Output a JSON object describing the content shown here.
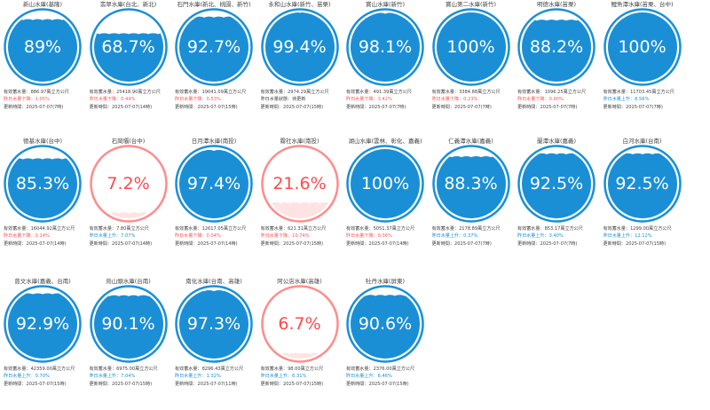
{
  "reservoirs": [
    {
      "name": "新山水庫(基隆)",
      "pct_label": "89%",
      "level": 0.89,
      "storage": "有效蓄水量：886.97萬立方公尺",
      "change": "昨日水量下降：1.05%",
      "change_dir": "down",
      "updated": "更新時間：2025-07-07(7時)"
    },
    {
      "name": "翡翠水庫(台北、新北)",
      "pct_label": "68.7%",
      "level": 0.687,
      "storage": "有效蓄水量：25418.90萬立方公尺",
      "change": "昨日水量下降：0.44%",
      "change_dir": "down",
      "updated": "更新時間：2025-07-07(14時)"
    },
    {
      "name": "石門水庫(新北、桃園、新竹)",
      "pct_label": "92.7%",
      "level": 0.927,
      "storage": "有效蓄水量：19041.09萬立方公尺",
      "change": "昨日水量下降：0.53%",
      "change_dir": "down",
      "updated": "更新時間：2025-07-07(15時)"
    },
    {
      "name": "永和山水庫(新竹、苗栗)",
      "pct_label": "99.4%",
      "level": 0.994,
      "storage": "有效蓄水量：2974.29萬立方公尺",
      "change": "昨日水量狀態：待更新",
      "change_dir": "flat",
      "updated": "更新時間：2025-07-07(15時)"
    },
    {
      "name": "寶山水庫(新竹)",
      "pct_label": "98.1%",
      "level": 0.981,
      "storage": "有效蓄水量：491.39萬立方公尺",
      "change": "昨日水量下降：3.42%",
      "change_dir": "down",
      "updated": "更新時間：2025-07-07(7時)"
    },
    {
      "name": "寶山第二水庫(新竹)",
      "pct_label": "100%",
      "level": 1.0,
      "storage": "有效蓄水量：3384.88萬立方公尺",
      "change": "昨日水量下降：0.23%",
      "change_dir": "down",
      "updated": "更新時間：2025-07-07(7時)"
    },
    {
      "name": "明德水庫(苗栗)",
      "pct_label": "88.2%",
      "level": 0.882,
      "storage": "有效蓄水量：1096.25萬立方公尺",
      "change": "昨日水量下降：0.90%",
      "change_dir": "down",
      "updated": "更新時間：2025-07-07(7時)"
    },
    {
      "name": "鯉魚潭水庫(苗栗、台中)",
      "pct_label": "100%",
      "level": 1.0,
      "storage": "有效蓄水量：11703.45萬立方公尺",
      "change": "昨日水量上升：8.56%",
      "change_dir": "up",
      "updated": "更新時間：2025-07-07(7時)"
    },
    {
      "name": "德基水庫(台中)",
      "pct_label": "85.3%",
      "level": 0.853,
      "storage": "有效蓄水量：16044.92萬立方公尺",
      "change": "昨日水量下降：0.14%",
      "change_dir": "down",
      "updated": "更新時間：2025-07-07(14時)"
    },
    {
      "name": "石岡壩(台中)",
      "pct_label": "7.2%",
      "level": 0.072,
      "storage": "有效蓄水量：7.80萬立方公尺",
      "change": "昨日水量上升：7.07%",
      "change_dir": "up",
      "updated": "更新時間：2025-07-07(14時)"
    },
    {
      "name": "日月潭水庫(南投)",
      "pct_label": "97.4%",
      "level": 0.974,
      "storage": "有效蓄水量：12617.05萬立方公尺",
      "change": "昨日水量下降：0.04%",
      "change_dir": "down",
      "updated": "更新時間：2025-07-07(14時)"
    },
    {
      "name": "霧社水庫(南投)",
      "pct_label": "21.6%",
      "level": 0.216,
      "storage": "有效蓄水量：621.31萬立方公尺",
      "change": "昨日水量下降：10.74%",
      "change_dir": "down",
      "updated": "更新時間：2025-07-07(15時)"
    },
    {
      "name": "湖山水庫(雲林、彰化、嘉義)",
      "pct_label": "100%",
      "level": 1.0,
      "storage": "有效蓄水量：5051.37萬立方公尺",
      "change": "昨日水量下降：0.36%",
      "change_dir": "down",
      "updated": "更新時間：2025-07-07(14時)"
    },
    {
      "name": "仁義潭水庫(嘉義)",
      "pct_label": "88.3%",
      "level": 0.883,
      "storage": "有效蓄水量：2178.89萬立方公尺",
      "change": "昨日水量上升：0.37%",
      "change_dir": "up",
      "updated": "更新時間：2025-07-07(7時)"
    },
    {
      "name": "蘭潭水庫(嘉義)",
      "pct_label": "92.5%",
      "level": 0.925,
      "storage": "有效蓄水量：853.17萬立方公尺",
      "change": "昨日水量上升：3.40%",
      "change_dir": "up",
      "updated": "更新時間：2025-07-07(7時)"
    },
    {
      "name": "白河水庫(台南)",
      "pct_label": "92.5%",
      "level": 0.925,
      "storage": "有效蓄水量：1299.00萬立方公尺",
      "change": "昨日水量上升：12.12%",
      "change_dir": "up",
      "updated": "更新時間：2025-07-07(15時)"
    },
    {
      "name": "曾文水庫(嘉義、台南)",
      "pct_label": "92.9%",
      "level": 0.929,
      "storage": "有效蓄水量：42359.00萬立方公尺",
      "change": "昨日水量上升：0.70%",
      "change_dir": "up",
      "updated": "更新時間：2025-07-07(15時)"
    },
    {
      "name": "烏山頭水庫(台南)",
      "pct_label": "90.1%",
      "level": 0.901,
      "storage": "有效蓄水量：6975.00萬立方公尺",
      "change": "昨日水量上升：7.04%",
      "change_dir": "up",
      "updated": "更新時間：2025-07-07(15時)"
    },
    {
      "name": "南化水庫(台南、高雄)",
      "pct_label": "97.3%",
      "level": 0.973,
      "storage": "有效蓄水量：8296.43萬立方公尺",
      "change": "昨日水量上升：1.32%",
      "change_dir": "up",
      "updated": "更新時間：2025-07-07(11時)"
    },
    {
      "name": "阿公店水庫(高雄)",
      "pct_label": "6.7%",
      "level": 0.067,
      "storage": "有效蓄水量：98.00萬立方公尺",
      "change": "昨日水量上升：6.31%",
      "change_dir": "up",
      "updated": "更新時間：2025-07-07(15時)"
    },
    {
      "name": "牡丹水庫(屏東)",
      "pct_label": "90.6%",
      "level": 0.906,
      "storage": "有效蓄水量：2376.00萬立方公尺",
      "change": "昨日水量上升：6.46%",
      "change_dir": "up",
      "updated": "更新時間：2025-07-07(15時)"
    }
  ],
  "colors": {
    "water": "#1a8fd6",
    "ring": "#1a8fd6",
    "low_ring": "#ff8c8c",
    "low_water": "#ffe3e3",
    "low_text": "#ff4a4a",
    "up": "#1a8fd6",
    "down": "#ff5252"
  }
}
